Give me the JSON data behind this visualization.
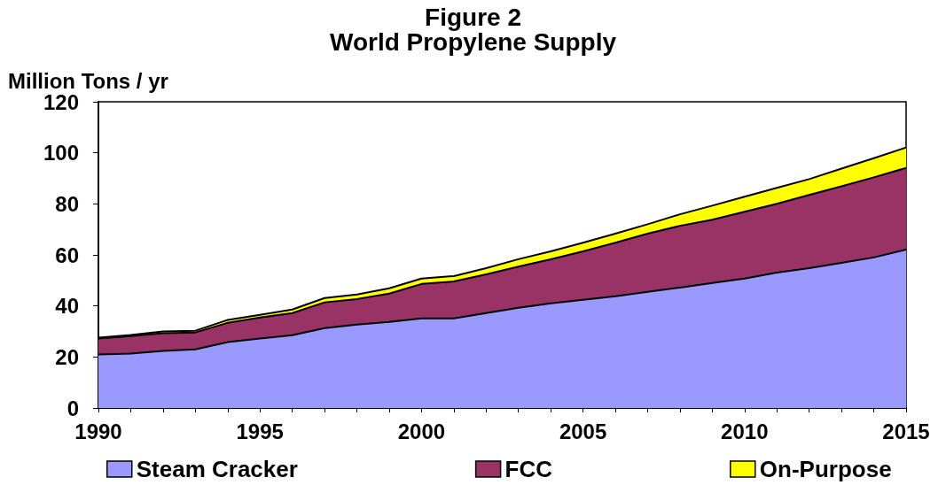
{
  "chart_data": {
    "type": "area",
    "title": "Figure 2",
    "subtitle": "World Propylene Supply",
    "ylabel": "Million Tons / yr",
    "stacked": true,
    "x": [
      1990,
      1991,
      1992,
      1993,
      1994,
      1995,
      1996,
      1997,
      1998,
      1999,
      2000,
      2001,
      2002,
      2003,
      2004,
      2005,
      2006,
      2007,
      2008,
      2009,
      2010,
      2011,
      2012,
      2013,
      2014,
      2015
    ],
    "series": [
      {
        "name": "Steam Cracker",
        "color": "#9999ff",
        "values": [
          21.0,
          21.3,
          22.4,
          23.0,
          25.8,
          27.2,
          28.5,
          31.3,
          32.7,
          33.7,
          35.1,
          35.1,
          37.2,
          39.3,
          41.0,
          42.4,
          43.8,
          45.5,
          47.2,
          49.0,
          50.7,
          53.1,
          54.8,
          56.9,
          59.0,
          62.1
        ]
      },
      {
        "name": "FCC",
        "color": "#993366",
        "values": [
          6.2,
          6.9,
          6.9,
          6.6,
          7.6,
          8.3,
          8.7,
          10.1,
          10.0,
          11.1,
          13.5,
          14.5,
          15.2,
          16.1,
          17.3,
          19.0,
          21.0,
          22.8,
          24.2,
          24.8,
          26.2,
          26.9,
          28.7,
          30.0,
          31.4,
          32.0
        ]
      },
      {
        "name": "On-Purpose",
        "color": "#ffff00",
        "values": [
          0.4,
          0.4,
          0.7,
          0.7,
          1.1,
          1.0,
          1.4,
          1.7,
          1.8,
          2.1,
          2.1,
          2.1,
          2.4,
          2.9,
          3.1,
          3.4,
          3.5,
          3.7,
          4.5,
          5.5,
          5.9,
          6.3,
          6.2,
          6.9,
          7.5,
          8.0
        ]
      }
    ],
    "xlim": [
      1990,
      2015
    ],
    "xticks": [
      1990,
      1995,
      2000,
      2005,
      2010,
      2015
    ],
    "ylim": [
      0,
      120
    ],
    "yticks": [
      0,
      20,
      40,
      60,
      80,
      100,
      120
    ],
    "grid": false,
    "legend": "bottom"
  }
}
